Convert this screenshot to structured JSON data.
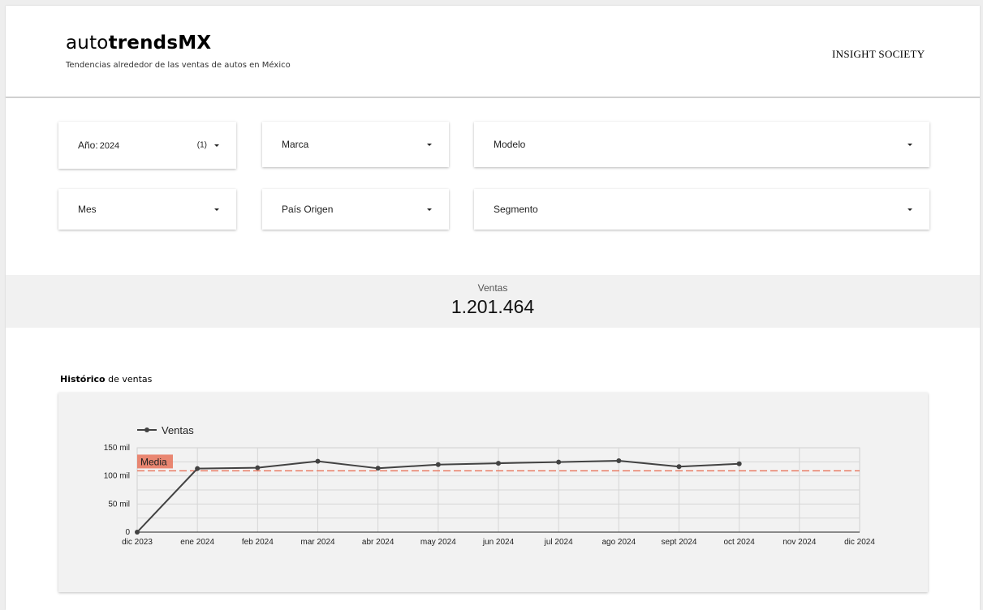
{
  "header": {
    "brand_light": "auto",
    "brand_bold": "trendsMX",
    "tagline": "Tendencias alrededor de las ventas de autos en México",
    "company": "INSIGHT SOCIETY"
  },
  "filters": {
    "year": {
      "label": "Año",
      "value": "2024",
      "count": "(1)"
    },
    "brand": {
      "label": "Marca"
    },
    "model": {
      "label": "Modelo"
    },
    "month": {
      "label": "Mes"
    },
    "origin": {
      "label": "País Origen"
    },
    "segment": {
      "label": "Segmento"
    }
  },
  "kpi": {
    "label": "Ventas",
    "value": "1.201.464"
  },
  "section": {
    "title_bold": "Histórico",
    "title_rest": " de ventas"
  },
  "chart_data": {
    "type": "line",
    "title": "",
    "xlabel": "",
    "ylabel": "",
    "x": [
      "dic 2023",
      "ene 2024",
      "feb 2024",
      "mar 2024",
      "abr 2024",
      "may 2024",
      "jun 2024",
      "jul 2024",
      "ago 2024",
      "sept 2024",
      "oct 2024",
      "nov 2024",
      "dic 2024"
    ],
    "series": [
      {
        "name": "Ventas",
        "color": "#424242",
        "values": [
          0,
          113000,
          114500,
          126000,
          113500,
          120000,
          122500,
          124500,
          127000,
          116500,
          121500,
          null,
          null
        ]
      }
    ],
    "reference_line": {
      "label": "Media",
      "value": 109000,
      "color": "#e8735a"
    },
    "yticks": [
      {
        "value": 0,
        "label": "0"
      },
      {
        "value": 50000,
        "label": "50 mil"
      },
      {
        "value": 100000,
        "label": "100 mil"
      },
      {
        "value": 150000,
        "label": "150 mil"
      }
    ],
    "ylim": [
      0,
      150000
    ],
    "grid": true,
    "legend": "top-left"
  }
}
